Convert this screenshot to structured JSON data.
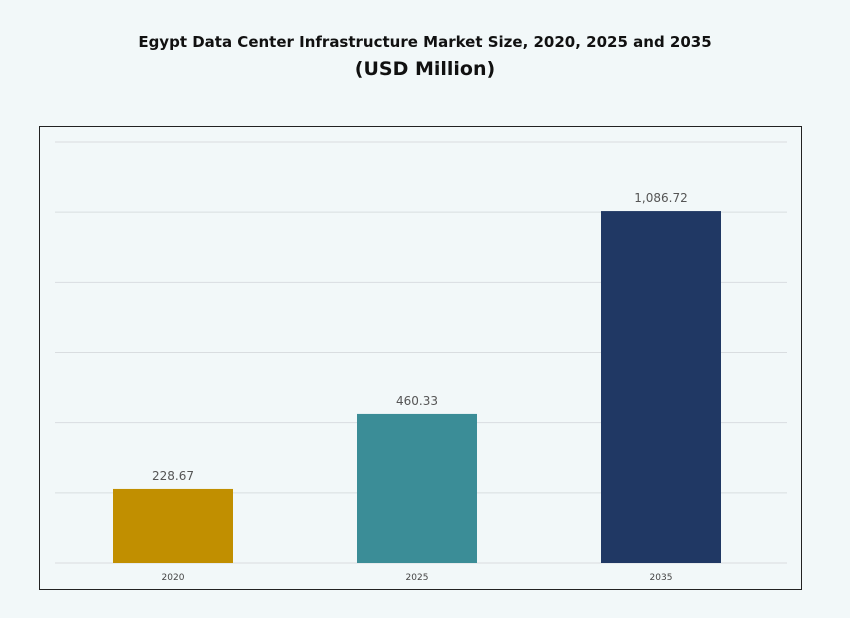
{
  "chart_data": {
    "type": "bar",
    "title": "Egypt Data Center Infrastructure  Market Size, 2020, 2025 and 2035",
    "subtitle": "(USD Million)",
    "categories": [
      "2020",
      "2025",
      "2035"
    ],
    "values": [
      228.67,
      460.33,
      1086.72
    ],
    "data_labels": [
      "228.67",
      "460.33",
      "1,086.72"
    ],
    "colors": [
      "#c18f00",
      "#3b8d97",
      "#203864"
    ],
    "xlabel": "",
    "ylabel": "",
    "ylim": [
      0,
      1300
    ],
    "grid": true,
    "legend": "none"
  }
}
